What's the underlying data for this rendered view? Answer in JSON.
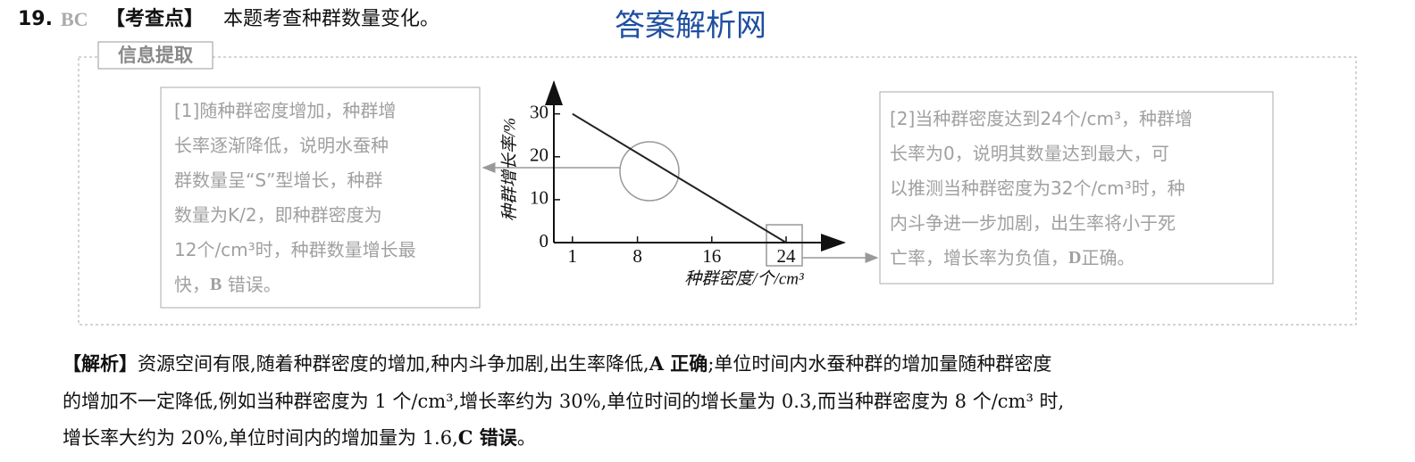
{
  "header": {
    "number": "19.",
    "answer": "BC",
    "tag": "【考查点】",
    "text": "本题考查种群数量变化。"
  },
  "watermark": "答案解析网",
  "box_title": "信息提取",
  "left_note": {
    "lines": [
      "[1]随种群密度增加，种群增",
      "长率逐渐降低，说明水蚕种",
      "群数量呈“S”型增长，种群",
      "数量为K/2，即种群密度为",
      "12个/cm³时，种群数量增长最",
      "快，"
    ],
    "bold": "B",
    "end": " 错误。"
  },
  "right_note": {
    "lines": [
      "[2]当种群密度达到24个/cm³，种群增",
      "长率为0，说明其数量达到最大，可",
      "以推测当种群密度为32个/cm³时，种",
      "内斗争进一步加剧，出生率将小于死",
      "亡率，增长率为负值，"
    ],
    "bold": "D",
    "end": "正确。"
  },
  "chart_data": {
    "type": "line",
    "x": [
      1,
      24
    ],
    "series": [
      {
        "color": "#222222",
        "values": [
          30,
          0
        ]
      }
    ],
    "xlim": [
      -1,
      29
    ],
    "ylim": [
      0,
      37
    ],
    "xticks": [
      1,
      8,
      16,
      24
    ],
    "yticks": [
      0,
      10,
      20,
      30
    ],
    "x_label": "种群密度/个/cm³",
    "y_label": "种群增长率/%"
  },
  "analysis": {
    "label": "【解析】",
    "line1": "资源空间有限,随着种群密度的增加,种内斗争加剧,出生率降低,",
    "a": "A 正确",
    "line1b": ";单位时间内水蚕种群的增加量随种群密度",
    "line2": "的增加不一定降低,例如当种群密度为 1 个/cm³,增长率约为 30%,单位时间的增长量为 0.3,而当种群密度为 8 个/cm³ 时,",
    "line3": "增长率大约为 20%,单位时间内的增加量为 1.6,",
    "c": "C 错误",
    "end": "。"
  }
}
